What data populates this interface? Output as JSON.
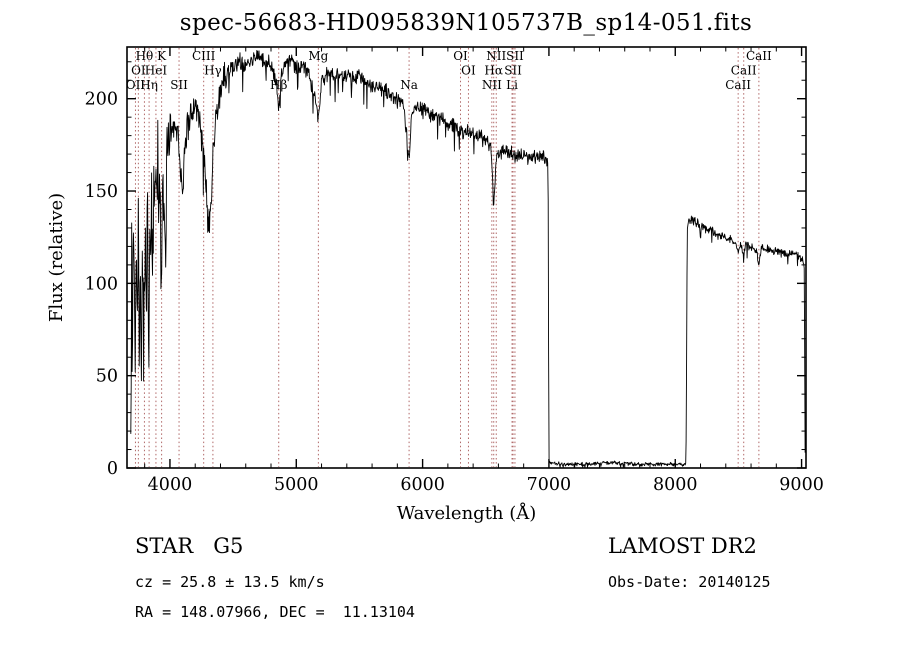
{
  "title": "spec-56683-HD095839N105737B_sp14-051.fits",
  "footer": {
    "object_type": "STAR   G5",
    "cz": "cz = 25.8 ± 13.5 km/s",
    "ra_dec": "RA = 148.07966, DEC =  11.13104",
    "survey": "LAMOST DR2",
    "obs_date": "Obs-Date: 20140125"
  },
  "colors": {
    "spectrum": "#000000",
    "frame": "#000000",
    "line_marker": "#b06868",
    "background": "#ffffff"
  },
  "chart_data": {
    "type": "line",
    "title": "spec-56683-HD095839N105737B_sp14-051.fits",
    "xlabel": "Wavelength (Å)",
    "ylabel": "Flux (relative)",
    "xlim": [
      3660,
      9035
    ],
    "ylim": [
      0,
      228
    ],
    "x_major_ticks": [
      4000,
      5000,
      6000,
      7000,
      8000,
      9000
    ],
    "x_minor_step": 200,
    "y_major_ticks": [
      0,
      50,
      100,
      150,
      200
    ],
    "y_minor_step": 10,
    "grid": false,
    "legend": "none",
    "series_name": "flux",
    "envelope_points": [
      [
        3690,
        2
      ],
      [
        3697,
        120
      ],
      [
        3702,
        55
      ],
      [
        3710,
        150
      ],
      [
        3718,
        95
      ],
      [
        3726,
        40
      ],
      [
        3734,
        125
      ],
      [
        3742,
        60
      ],
      [
        3750,
        145
      ],
      [
        3758,
        55
      ],
      [
        3766,
        100
      ],
      [
        3774,
        45
      ],
      [
        3782,
        115
      ],
      [
        3790,
        65
      ],
      [
        3798,
        90
      ],
      [
        3806,
        140
      ],
      [
        3814,
        75
      ],
      [
        3822,
        160
      ],
      [
        3830,
        70
      ],
      [
        3838,
        130
      ],
      [
        3846,
        100
      ],
      [
        3854,
        165
      ],
      [
        3862,
        110
      ],
      [
        3870,
        175
      ],
      [
        3878,
        120
      ],
      [
        3886,
        170
      ],
      [
        3894,
        130
      ],
      [
        3902,
        178
      ],
      [
        3910,
        135
      ],
      [
        3918,
        182
      ],
      [
        3926,
        125
      ],
      [
        3934,
        100
      ],
      [
        3942,
        170
      ],
      [
        3950,
        150
      ],
      [
        3958,
        130
      ],
      [
        3966,
        120
      ],
      [
        3974,
        170
      ],
      [
        3982,
        185
      ],
      [
        4000,
        182
      ],
      [
        4030,
        188
      ],
      [
        4060,
        178
      ],
      [
        4080,
        168
      ],
      [
        4100,
        148
      ],
      [
        4120,
        178
      ],
      [
        4160,
        190
      ],
      [
        4200,
        196
      ],
      [
        4240,
        188
      ],
      [
        4280,
        160
      ],
      [
        4300,
        130
      ],
      [
        4320,
        140
      ],
      [
        4340,
        165
      ],
      [
        4360,
        190
      ],
      [
        4400,
        205
      ],
      [
        4450,
        214
      ],
      [
        4500,
        217
      ],
      [
        4550,
        221
      ],
      [
        4600,
        217
      ],
      [
        4650,
        221
      ],
      [
        4700,
        224
      ],
      [
        4750,
        221
      ],
      [
        4800,
        219
      ],
      [
        4840,
        210
      ],
      [
        4861,
        192
      ],
      [
        4880,
        214
      ],
      [
        4920,
        220
      ],
      [
        4960,
        221
      ],
      [
        5000,
        217
      ],
      [
        5050,
        219
      ],
      [
        5100,
        214
      ],
      [
        5160,
        196
      ],
      [
        5175,
        188
      ],
      [
        5200,
        209
      ],
      [
        5250,
        214
      ],
      [
        5300,
        211
      ],
      [
        5350,
        214
      ],
      [
        5400,
        212
      ],
      [
        5450,
        211
      ],
      [
        5500,
        212
      ],
      [
        5550,
        209
      ],
      [
        5600,
        207
      ],
      [
        5650,
        206
      ],
      [
        5700,
        204
      ],
      [
        5750,
        202
      ],
      [
        5800,
        199
      ],
      [
        5850,
        197
      ],
      [
        5885,
        172
      ],
      [
        5896,
        168
      ],
      [
        5910,
        190
      ],
      [
        5950,
        195
      ],
      [
        6000,
        194
      ],
      [
        6050,
        192
      ],
      [
        6100,
        191
      ],
      [
        6150,
        189
      ],
      [
        6200,
        187
      ],
      [
        6250,
        185
      ],
      [
        6300,
        183
      ],
      [
        6350,
        182
      ],
      [
        6400,
        181
      ],
      [
        6450,
        179
      ],
      [
        6500,
        177
      ],
      [
        6540,
        175
      ],
      [
        6563,
        142
      ],
      [
        6585,
        170
      ],
      [
        6650,
        171
      ],
      [
        6700,
        170
      ],
      [
        6750,
        169
      ],
      [
        6800,
        169
      ],
      [
        6850,
        168
      ],
      [
        6900,
        169
      ],
      [
        6950,
        168
      ],
      [
        6993,
        167
      ],
      [
        7000,
        3
      ],
      [
        7100,
        2
      ],
      [
        7300,
        2
      ],
      [
        7500,
        3
      ],
      [
        7700,
        2
      ],
      [
        7900,
        2
      ],
      [
        8085,
        2
      ],
      [
        8095,
        130
      ],
      [
        8110,
        135
      ],
      [
        8150,
        134
      ],
      [
        8200,
        131
      ],
      [
        8250,
        129
      ],
      [
        8300,
        128
      ],
      [
        8350,
        126
      ],
      [
        8400,
        125
      ],
      [
        8450,
        124
      ],
      [
        8490,
        120
      ],
      [
        8498,
        116
      ],
      [
        8515,
        123
      ],
      [
        8535,
        117
      ],
      [
        8542,
        113
      ],
      [
        8558,
        121
      ],
      [
        8600,
        120
      ],
      [
        8640,
        118
      ],
      [
        8662,
        111
      ],
      [
        8678,
        119
      ],
      [
        8720,
        119
      ],
      [
        8770,
        118
      ],
      [
        8820,
        117
      ],
      [
        8870,
        116
      ],
      [
        8920,
        116
      ],
      [
        8970,
        115
      ],
      [
        9010,
        113
      ],
      [
        9022,
        108
      ],
      [
        9028,
        0
      ]
    ],
    "noise_regions": [
      {
        "range": [
          3660,
          3995
        ],
        "amp": 26
      },
      {
        "range": [
          3995,
          4450
        ],
        "amp": 11
      },
      {
        "range": [
          4450,
          6995
        ],
        "amp": 5
      },
      {
        "range": [
          6995,
          8090
        ],
        "amp": 1.2
      },
      {
        "range": [
          8090,
          9035
        ],
        "amp": 3
      }
    ],
    "spectral_lines": [
      {
        "label": "Hθ",
        "wavelength": 3798,
        "row": 0
      },
      {
        "label": "K",
        "wavelength": 3934,
        "row": 0
      },
      {
        "label": "OI",
        "wavelength": 3750,
        "row": 1
      },
      {
        "label": "HeI",
        "wavelength": 3889,
        "row": 1
      },
      {
        "label": "OII",
        "wavelength": 3727,
        "row": 2
      },
      {
        "label": "Hη",
        "wavelength": 3835,
        "row": 2
      },
      {
        "label": "SII",
        "wavelength": 4072,
        "row": 2
      },
      {
        "label": "CIII",
        "wavelength": 4267,
        "row": 0
      },
      {
        "label": "Hγ",
        "wavelength": 4340,
        "row": 1
      },
      {
        "label": "Hβ",
        "wavelength": 4861,
        "row": 2
      },
      {
        "label": "Mg",
        "wavelength": 5175,
        "row": 0
      },
      {
        "label": "Na",
        "wavelength": 5893,
        "row": 2
      },
      {
        "label": "OI",
        "wavelength": 6300,
        "row": 0
      },
      {
        "label": "OI",
        "wavelength": 6363,
        "row": 1
      },
      {
        "label": "NII",
        "wavelength": 6583,
        "row": 0
      },
      {
        "label": "SII",
        "wavelength": 6731,
        "row": 0
      },
      {
        "label": "Hα",
        "wavelength": 6563,
        "row": 1
      },
      {
        "label": "SII",
        "wavelength": 6716,
        "row": 1
      },
      {
        "label": "NII",
        "wavelength": 6548,
        "row": 2
      },
      {
        "label": "Li",
        "wavelength": 6708,
        "row": 2
      },
      {
        "label": "CaII",
        "wavelength": 8662,
        "row": 0
      },
      {
        "label": "CaII",
        "wavelength": 8542,
        "row": 1
      },
      {
        "label": "CaII",
        "wavelength": 8498,
        "row": 2
      }
    ]
  }
}
